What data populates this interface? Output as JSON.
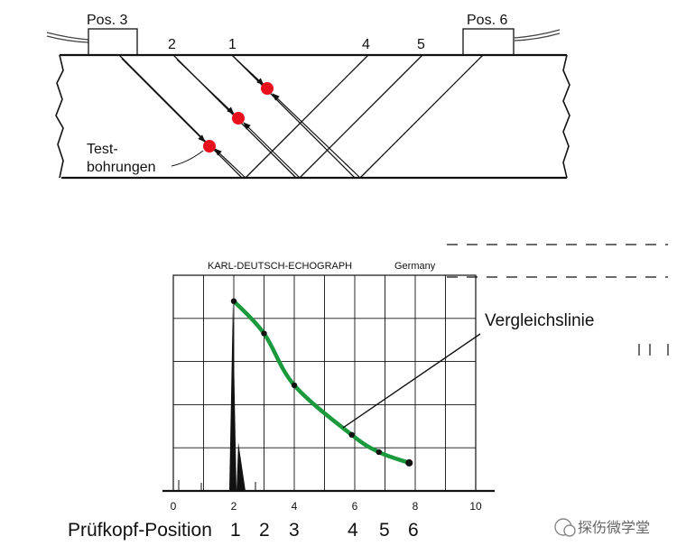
{
  "top_diagram": {
    "probe_left_label": "Pos. 3",
    "probe_right_label": "Pos. 6",
    "beam_labels": [
      "2",
      "1",
      "4",
      "5"
    ],
    "test_holes_label_line1": "Test-",
    "test_holes_label_line2": "bohrungen",
    "hole_color": "#e8101c"
  },
  "screen": {
    "header_brand": "KARL-DEUTSCH-ECHOGRAPH",
    "header_country": "Germany",
    "x_ticks": [
      "0",
      "2",
      "4",
      "6",
      "8",
      "10"
    ],
    "curve_label": "Vergleichslinie",
    "curve_color": "#1a9a3c",
    "dac_points": [
      {
        "x": 2.0,
        "y": 0.88
      },
      {
        "x": 3.0,
        "y": 0.73
      },
      {
        "x": 4.0,
        "y": 0.49
      },
      {
        "x": 5.9,
        "y": 0.26
      },
      {
        "x": 6.8,
        "y": 0.18
      },
      {
        "x": 7.8,
        "y": 0.13
      }
    ]
  },
  "position_row": {
    "title": "Prüfkopf-Position",
    "numbers": [
      "1",
      "2",
      "3",
      "4",
      "5",
      "6"
    ]
  },
  "watermark": {
    "text": "探伤微学堂"
  }
}
